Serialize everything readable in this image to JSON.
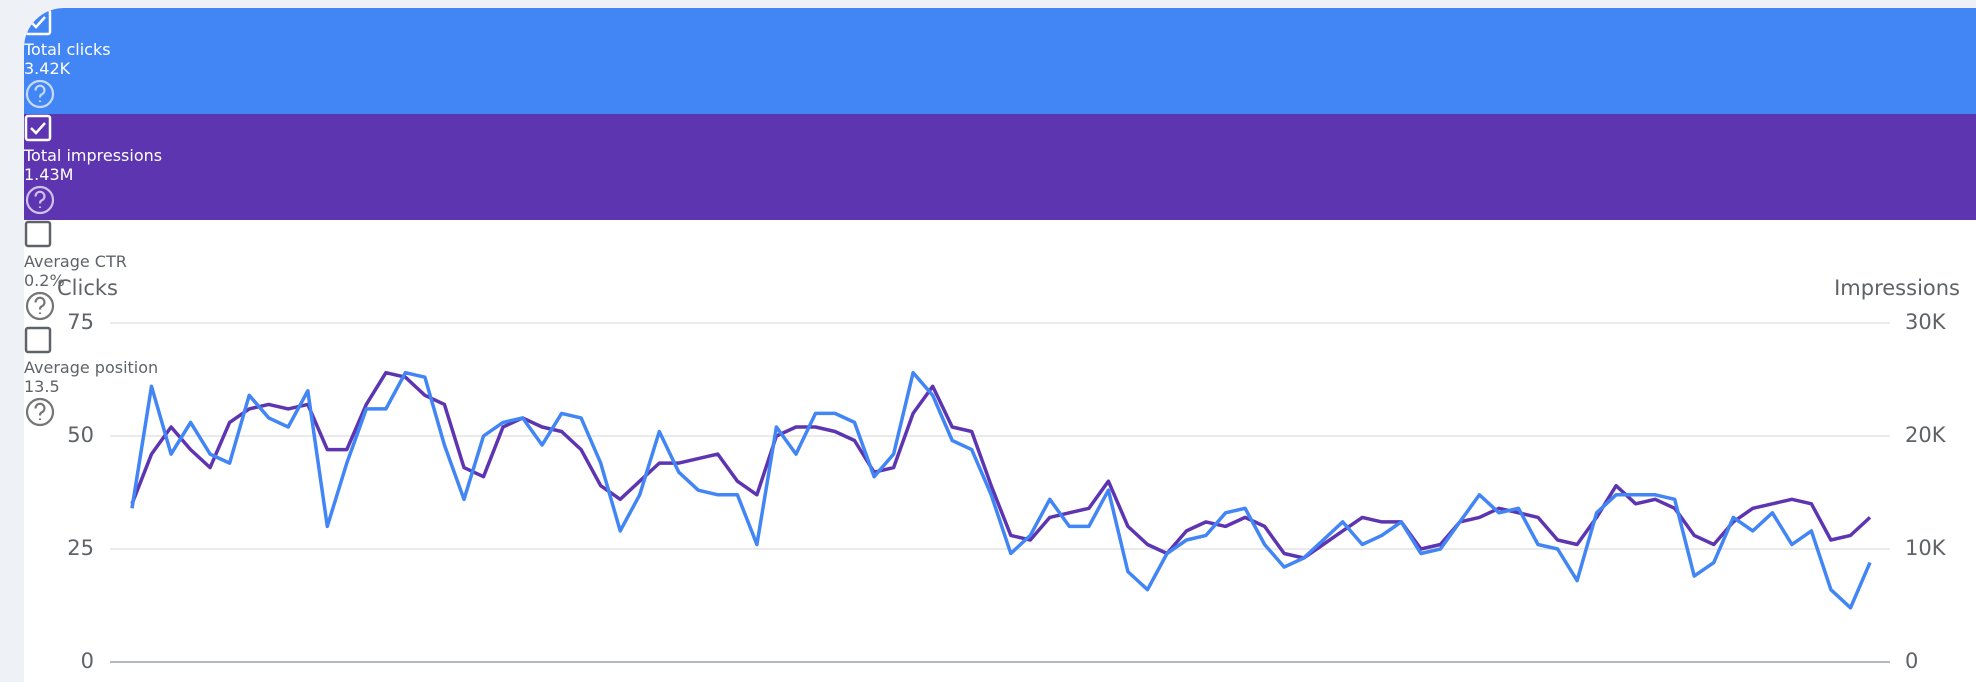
{
  "metrics": [
    {
      "label": "Total clicks",
      "value": "3.42K",
      "checked": true,
      "color": "#4285f4"
    },
    {
      "label": "Total impressions",
      "value": "1.43M",
      "checked": true,
      "color": "#5e35b1"
    },
    {
      "label": "Average CTR",
      "value": "0.2%",
      "checked": false,
      "color": "#ffffff"
    },
    {
      "label": "Average position",
      "value": "13.5",
      "checked": false,
      "color": "#ffffff"
    }
  ],
  "chart_data": {
    "type": "line",
    "y_label": "Clicks",
    "y2_label": "Impressions",
    "ylim": [
      0,
      75
    ],
    "yticks": [
      0,
      25,
      50,
      75
    ],
    "y2lim": [
      0,
      30000
    ],
    "y2ticks": [
      0,
      {
        "value": 10000,
        "label": "10K"
      },
      {
        "value": 20000,
        "label": "20K"
      },
      {
        "value": 30000,
        "label": "30K"
      }
    ],
    "grid": true,
    "series": [
      {
        "color": "#5e35b1",
        "axis": "y2",
        "values": [
          14000,
          18400,
          20800,
          18800,
          17200,
          21200,
          22400,
          22800,
          22400,
          22800,
          18800,
          18800,
          22800,
          25600,
          25200,
          23600,
          22800,
          17200,
          16400,
          20800,
          21600,
          20800,
          20400,
          18800,
          15600,
          14400,
          16000,
          17600,
          17600,
          18000,
          18400,
          16000,
          14800,
          20000,
          20800,
          20800,
          20400,
          19600,
          16800,
          17200,
          22000,
          24400,
          20800,
          20400,
          15600,
          11200,
          10800,
          12800,
          13200,
          13600,
          16000,
          12000,
          10400,
          9600,
          11600,
          12400,
          12000,
          12800,
          12000,
          9600,
          9200,
          10400,
          11600,
          12800,
          12400,
          12400,
          10000,
          10400,
          12400,
          12800,
          13600,
          13200,
          12800,
          10800,
          10400,
          12800,
          15600,
          14000,
          14400,
          13600,
          11200,
          10400,
          12400,
          13600,
          14000,
          14400,
          14000,
          10800,
          11200,
          12800
        ]
      },
      {
        "color": "#4285f4",
        "values": [
          34,
          61,
          46,
          53,
          46,
          44,
          59,
          54,
          52,
          60,
          30,
          44,
          56,
          56,
          64,
          63,
          48,
          36,
          50,
          53,
          54,
          48,
          55,
          54,
          44,
          29,
          37,
          51,
          42,
          38,
          37,
          37,
          26,
          52,
          46,
          55,
          55,
          53,
          41,
          46,
          64,
          59,
          49,
          47,
          37,
          24,
          28,
          36,
          30,
          30,
          38,
          20,
          16,
          24,
          27,
          28,
          33,
          34,
          26,
          21,
          23,
          27,
          31,
          26,
          28,
          31,
          24,
          25,
          31,
          37,
          33,
          34,
          26,
          25,
          18,
          33,
          37,
          37,
          37,
          36,
          19,
          22,
          32,
          29,
          33,
          26,
          29,
          16,
          12,
          22
        ]
      }
    ]
  }
}
